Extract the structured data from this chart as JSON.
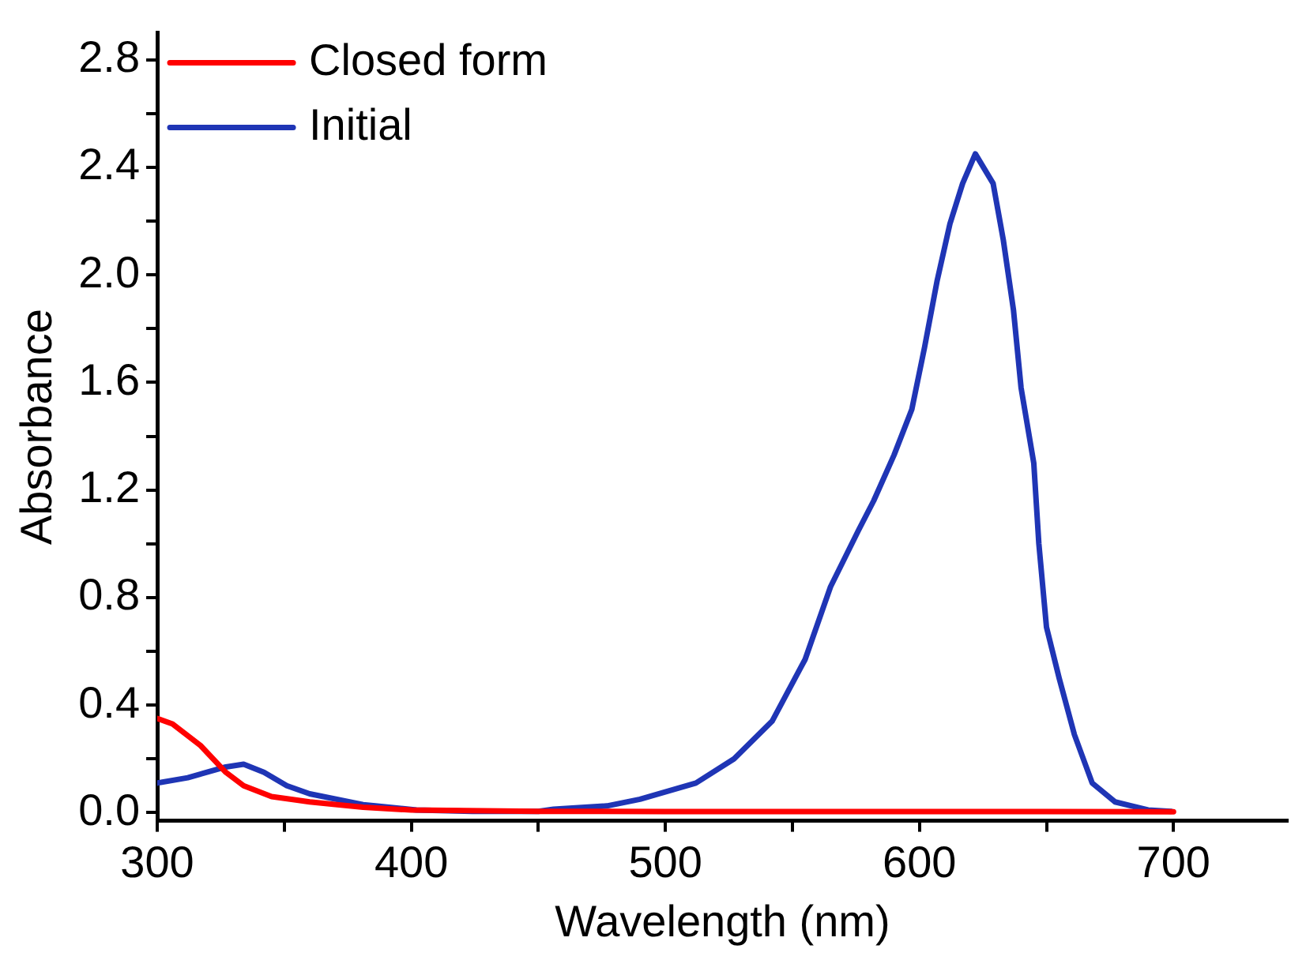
{
  "chart_data": {
    "type": "line",
    "xlabel": "Wavelength (nm)",
    "ylabel": "Absorbance",
    "xlim": [
      300,
      745
    ],
    "ylim": [
      -0.03,
      2.9
    ],
    "xticks": [
      300,
      {
        "value": 350,
        "label": null
      },
      400,
      {
        "value": 450,
        "label": null
      },
      500,
      {
        "value": 550,
        "label": null
      },
      600,
      {
        "value": 650,
        "label": null
      },
      700
    ],
    "yticks": [
      {
        "value": 0,
        "label": "0.0"
      },
      {
        "value": 0.2,
        "label": null
      },
      0.4,
      {
        "value": 0.6,
        "label": null
      },
      0.8,
      {
        "value": 1,
        "label": null
      },
      1.2,
      {
        "value": 1.4,
        "label": null
      },
      1.6,
      {
        "value": 1.8,
        "label": null
      },
      {
        "value": 2,
        "label": "2.0"
      },
      {
        "value": 2.2,
        "label": null
      },
      2.4,
      {
        "value": 2.6,
        "label": null
      },
      2.8
    ],
    "grid": false,
    "legend": "top left",
    "marker": "none",
    "line_style": "solid",
    "series": [
      {
        "name": "Closed form",
        "color": "#ff0000",
        "x": [
          300,
          306,
          317,
          327,
          334,
          345,
          360,
          381,
          400,
          450,
          500,
          550,
          600,
          650,
          700
        ],
        "values": [
          0.35,
          0.33,
          0.25,
          0.15,
          0.1,
          0.06,
          0.04,
          0.02,
          0.01,
          0.005,
          0.004,
          0.004,
          0.004,
          0.004,
          0.003
        ]
      },
      {
        "name": "Initial",
        "color": "#1f35b5",
        "x": [
          300,
          312,
          327,
          334,
          342,
          351,
          360,
          381,
          402,
          424,
          450,
          456,
          477,
          490,
          512,
          527,
          542,
          555,
          565,
          576,
          582,
          590,
          597,
          602,
          607,
          612,
          617,
          622,
          629,
          633,
          637,
          640,
          645,
          647,
          650,
          655,
          661,
          668,
          677,
          690,
          699
        ],
        "values": [
          0.11,
          0.13,
          0.17,
          0.18,
          0.15,
          0.1,
          0.07,
          0.03,
          0.01,
          0.005,
          0.005,
          0.013,
          0.025,
          0.05,
          0.11,
          0.2,
          0.34,
          0.57,
          0.84,
          1.05,
          1.16,
          1.33,
          1.5,
          1.73,
          1.98,
          2.19,
          2.34,
          2.45,
          2.34,
          2.13,
          1.87,
          1.58,
          1.3,
          1.0,
          0.69,
          0.5,
          0.29,
          0.11,
          0.04,
          0.01,
          0.005
        ]
      }
    ]
  }
}
